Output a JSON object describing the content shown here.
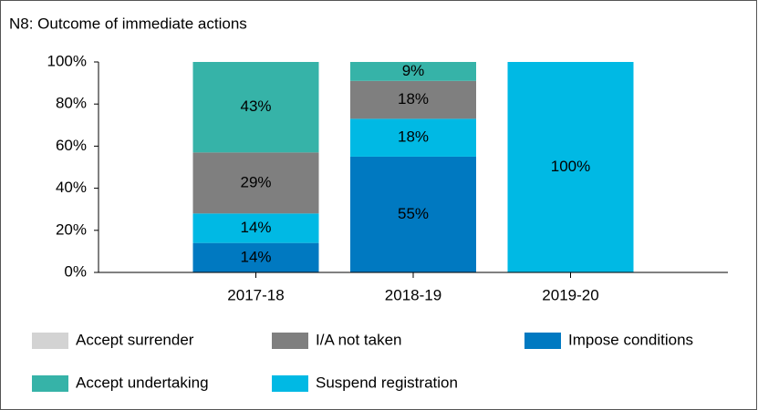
{
  "chart_data": {
    "type": "stacked_bar",
    "title": "N8: Outcome of immediate actions",
    "categories": [
      "2017-18",
      "2018-19",
      "2019-20"
    ],
    "series": [
      {
        "name": "Impose conditions",
        "color": "#0079c1",
        "values": [
          14,
          55,
          0
        ],
        "value_labels": [
          "14%",
          "55%",
          null
        ]
      },
      {
        "name": "Suspend registration",
        "color": "#00b9e4",
        "values": [
          14,
          18,
          100
        ],
        "value_labels": [
          "14%",
          "18%",
          "100%"
        ]
      },
      {
        "name": "I/A not taken",
        "color": "#7f7f7f",
        "values": [
          29,
          18,
          0
        ],
        "value_labels": [
          "29%",
          "18%",
          null
        ]
      },
      {
        "name": "Accept undertaking",
        "color": "#36b3a8",
        "values": [
          43,
          9,
          0
        ],
        "value_labels": [
          "43%",
          "9%",
          null
        ]
      },
      {
        "name": "Accept surrender",
        "color": "#d3d3d3",
        "values": [
          0,
          0,
          0
        ]
      }
    ],
    "ylim": [
      0,
      100
    ],
    "yticks": [
      {
        "value": 0,
        "label": "0%"
      },
      {
        "value": 20,
        "label": "20%"
      },
      {
        "value": 40,
        "label": "40%"
      },
      {
        "value": 60,
        "label": "60%"
      },
      {
        "value": 80,
        "label": "80%"
      },
      {
        "value": 100,
        "label": "100%"
      }
    ]
  }
}
